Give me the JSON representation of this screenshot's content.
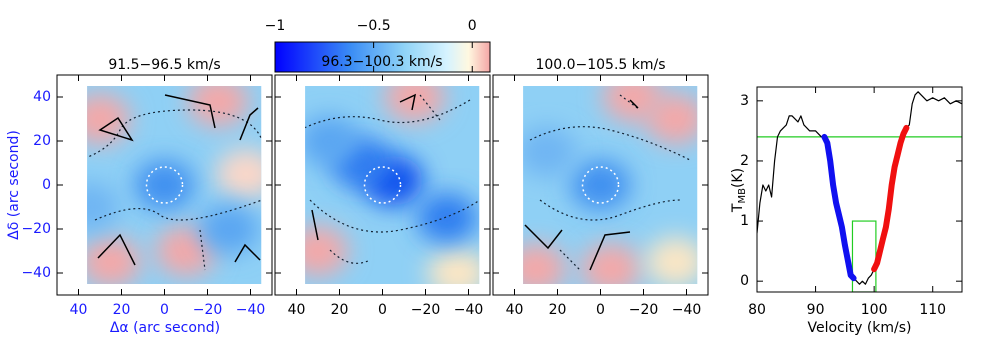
{
  "chart_data": [
    {
      "type": "heatmap",
      "xlabel": "Δα (arc second)",
      "ylabel": "Δδ (arc second)",
      "xlim": [
        50,
        -50
      ],
      "ylim": [
        -50,
        50
      ],
      "xticks": [
        40,
        20,
        0,
        {
          "value": -20,
          "label": "−20"
        },
        {
          "value": -40,
          "label": "−40"
        }
      ],
      "yticks": [
        {
          "value": -40,
          "label": "−40"
        },
        {
          "value": -20,
          "label": "−20"
        },
        0,
        20,
        40
      ],
      "panels": [
        {
          "title": "91.5−96.5 km/s"
        },
        {
          "title": "96.3−100.3 km/s"
        },
        {
          "title": "100.0−105.5 km/s"
        }
      ],
      "colorbar": {
        "lim": [
          -1,
          0.09
        ],
        "ticks": [
          {
            "value": -1,
            "label": "−1"
          },
          {
            "value": -0.5,
            "label": "−0.5"
          },
          0
        ]
      }
    },
    {
      "type": "line",
      "xlabel": "Velocity (km/s)",
      "ylabel": {
        "main": "T",
        "sub": "MB",
        "rest": "(K)"
      },
      "xlim": [
        80,
        115
      ],
      "ylim": [
        -0.18,
        3.23
      ],
      "xticks": [
        80,
        90,
        100,
        110
      ],
      "yticks": [
        0,
        1,
        2,
        3
      ],
      "hline": 2.4,
      "box": {
        "x": [
          96.3,
          100.3
        ],
        "top": 1
      },
      "series": [
        {
          "color": "#000000",
          "x": [
            80,
            80.5,
            81,
            81.5,
            82,
            82.5,
            83,
            83.5,
            84,
            85,
            85.5,
            86,
            87,
            87.5,
            88,
            89,
            90,
            91,
            91.5,
            92,
            92.5,
            93,
            93.5,
            94,
            94.5,
            95,
            95.5,
            96,
            96.5,
            97,
            97.5,
            98,
            98.5,
            99,
            99.5,
            100,
            100.5,
            101,
            101.5,
            102,
            102.5,
            103,
            103.5,
            104,
            104.5,
            105,
            105.5,
            106,
            106.5,
            107,
            107.5,
            108,
            109,
            110,
            111,
            112,
            113,
            114,
            115
          ],
          "values": [
            0.8,
            1.3,
            1.6,
            1.5,
            1.6,
            1.4,
            2.0,
            2.4,
            2.5,
            2.6,
            2.75,
            2.75,
            2.65,
            2.75,
            2.6,
            2.5,
            2.5,
            2.4,
            2.4,
            2.3,
            2.0,
            1.6,
            1.3,
            1.1,
            0.9,
            0.6,
            0.35,
            0.1,
            0.05,
            0.0,
            -0.05,
            0.0,
            -0.05,
            0.05,
            0.1,
            0.2,
            0.3,
            0.5,
            0.7,
            0.9,
            1.2,
            1.6,
            1.9,
            2.1,
            2.3,
            2.45,
            2.55,
            2.6,
            2.95,
            3.1,
            3.15,
            3.1,
            3.0,
            3.05,
            3.0,
            3.05,
            2.95,
            3.0,
            2.95
          ]
        },
        {
          "color": "#1010f0",
          "x": [
            91.5,
            92,
            92.5,
            93,
            93.5,
            94,
            94.5,
            95,
            95.5,
            96,
            96.5
          ],
          "values": [
            2.4,
            2.3,
            2.0,
            1.6,
            1.3,
            1.1,
            0.9,
            0.6,
            0.35,
            0.1,
            0.05
          ]
        },
        {
          "color": "#f01010",
          "x": [
            100,
            100.5,
            101,
            101.5,
            102,
            102.5,
            103,
            103.5,
            104,
            104.5,
            105,
            105.5
          ],
          "values": [
            0.2,
            0.3,
            0.5,
            0.7,
            0.9,
            1.2,
            1.6,
            1.9,
            2.1,
            2.3,
            2.45,
            2.55
          ]
        }
      ]
    }
  ]
}
